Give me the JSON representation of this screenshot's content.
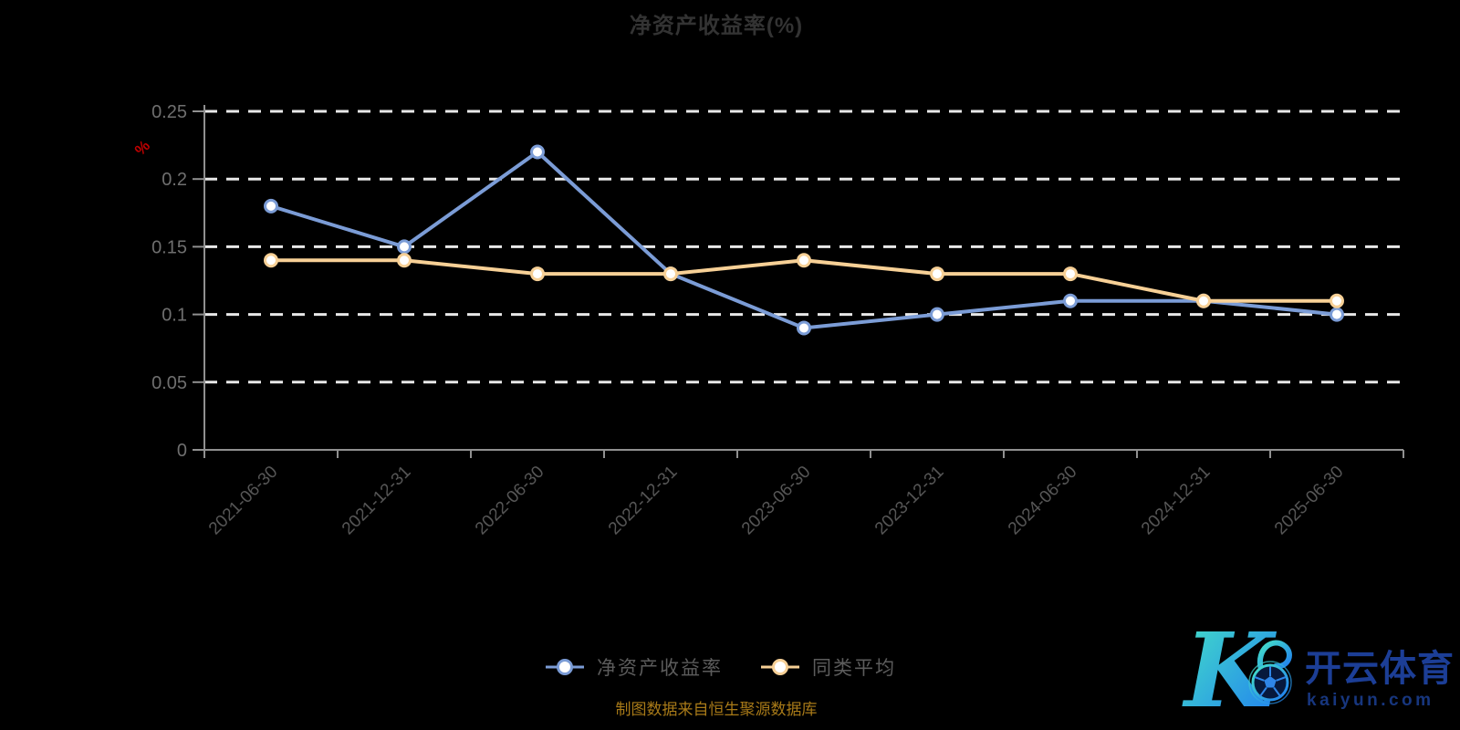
{
  "chart_data": {
    "type": "line",
    "title": "净资产收益率(%)",
    "y_axis_unit": "%",
    "categories": [
      "2021-06-30",
      "2021-12-31",
      "2022-06-30",
      "2022-12-31",
      "2023-06-30",
      "2023-12-31",
      "2024-06-30",
      "2024-12-31",
      "2025-06-30"
    ],
    "series": [
      {
        "id": "roe",
        "name": "净资产收益率",
        "color": "#7b9cd6",
        "values": [
          0.18,
          0.15,
          0.22,
          0.13,
          0.09,
          0.1,
          0.11,
          0.11,
          0.1
        ]
      },
      {
        "id": "peer-avg",
        "name": "同类平均",
        "color": "#f7d096",
        "values": [
          0.14,
          0.14,
          0.13,
          0.13,
          0.14,
          0.13,
          0.13,
          0.11,
          0.11
        ]
      }
    ],
    "ylim": [
      0,
      0.25
    ],
    "y_ticks": [
      0,
      0.05,
      0.1,
      0.15,
      0.2,
      0.25
    ],
    "grid": "horizontal dashed white lines",
    "legend_position": "bottom-center",
    "x_label_rotation": 45
  },
  "colors": {
    "background": "#000000",
    "title": "#333333",
    "grid": "#e8e8e8",
    "axis_line": "#909090",
    "y_label": "#6f6f6f",
    "x_label": "#565656",
    "unit": "#c00000",
    "legend_text": "#5c5c5c",
    "footer": "#a87a18",
    "point_fill": "#ffffff",
    "watermark_brand": "#1c3e96",
    "watermark_domain": "#17367e",
    "watermark_gradient": [
      "#45e2c6",
      "#1f7bf2"
    ]
  },
  "footer": {
    "text": "制图数据来自恒生聚源数据库"
  },
  "watermark": {
    "letter": "K",
    "brand": "开云体育",
    "domain": "kaiyun.com"
  }
}
